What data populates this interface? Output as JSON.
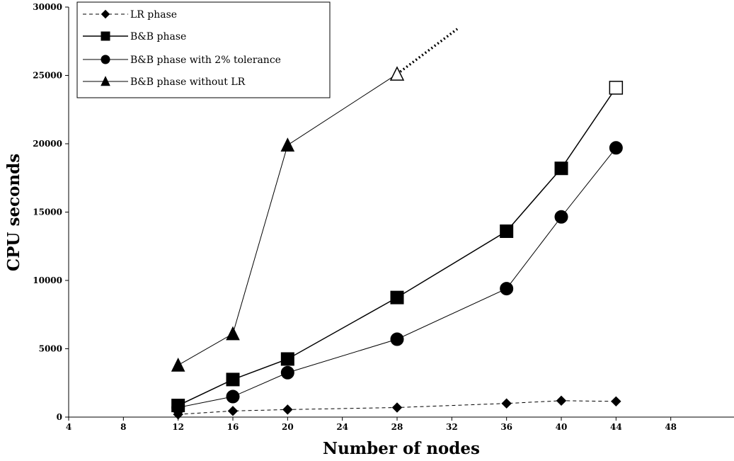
{
  "chart_data": {
    "type": "line",
    "xlabel": "Number of nodes",
    "ylabel": "CPU seconds",
    "xlim": [
      4,
      52
    ],
    "ylim": [
      0,
      30000
    ],
    "x_ticks": [
      "4",
      "8",
      "12",
      "16",
      "20",
      "24",
      "28",
      "32",
      "36",
      "40",
      "44",
      "48"
    ],
    "y_ticks": [
      "0",
      "5000",
      "10000",
      "15000",
      "20000",
      "25000",
      "30000"
    ],
    "grid": false,
    "legend_position": "top-left",
    "series": [
      {
        "name": "LR phase",
        "marker": "diamond",
        "line_style": "dashed",
        "x": [
          12,
          16,
          20,
          28,
          36,
          40,
          44
        ],
        "y": [
          200,
          450,
          550,
          700,
          1000,
          1200,
          1150
        ]
      },
      {
        "name": "B&B phase",
        "marker": "square",
        "line_style": "solid",
        "x": [
          12,
          16,
          20,
          28,
          36,
          40,
          44
        ],
        "y": [
          850,
          2750,
          4250,
          8750,
          13600,
          18200,
          24100
        ],
        "open_marker_x": [
          44
        ]
      },
      {
        "name": "B&B phase with 2% tolerance",
        "marker": "circle",
        "line_style": "solid",
        "x": [
          12,
          16,
          20,
          28,
          36,
          40,
          44
        ],
        "y": [
          700,
          1500,
          3250,
          5700,
          9400,
          14650,
          19700
        ]
      },
      {
        "name": "B&B phase without LR",
        "marker": "triangle",
        "line_style": "solid",
        "x": [
          12,
          16,
          20,
          28
        ],
        "y": [
          3800,
          6100,
          19900,
          25100
        ],
        "open_marker_x": [
          28
        ],
        "extrapolation": {
          "x": [
            28,
            32.4
          ],
          "y": [
            25100,
            28400
          ]
        }
      }
    ]
  }
}
